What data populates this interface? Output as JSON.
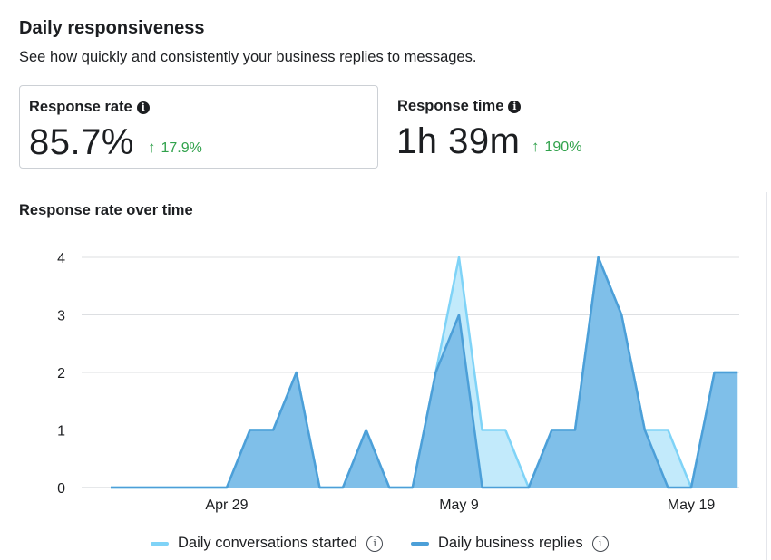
{
  "header": {
    "title": "Daily responsiveness",
    "subtitle": "See how quickly and consistently your business replies to messages."
  },
  "metrics": [
    {
      "label": "Response rate",
      "value": "85.7%",
      "delta": "17.9%",
      "delta_direction": "up",
      "info_icon": "info-icon"
    },
    {
      "label": "Response time",
      "value": "1h 39m",
      "delta": "190%",
      "delta_direction": "up",
      "info_icon": "info-icon"
    }
  ],
  "colors": {
    "positive": "#31a24c",
    "conversations_line": "#7fd3f7",
    "conversations_fill": "#bfe9fb",
    "replies_line": "#4c9fd8",
    "replies_fill": "#7bbde8",
    "grid": "#dddfe2"
  },
  "chart_data": {
    "type": "area",
    "title": "Response rate over time",
    "x_tick_labels": [
      "Apr 29",
      "May 9",
      "May 19"
    ],
    "x": [
      "Apr 24",
      "Apr 25",
      "Apr 26",
      "Apr 27",
      "Apr 28",
      "Apr 29",
      "Apr 30",
      "May 1",
      "May 2",
      "May 3",
      "May 4",
      "May 5",
      "May 6",
      "May 7",
      "May 8",
      "May 9",
      "May 10",
      "May 11",
      "May 12",
      "May 13",
      "May 14",
      "May 15",
      "May 16",
      "May 17",
      "May 18",
      "May 19",
      "May 20",
      "May 21"
    ],
    "ylim": [
      0,
      4
    ],
    "y_ticks": [
      0,
      1,
      2,
      3,
      4
    ],
    "grid": true,
    "legend_position": "bottom",
    "series": [
      {
        "name": "Daily conversations started",
        "values": [
          0,
          0,
          0,
          0,
          0,
          0,
          1,
          1,
          2,
          0,
          0,
          1,
          0,
          0,
          2,
          4,
          1,
          1,
          0,
          1,
          1,
          4,
          3,
          1,
          1,
          0,
          2,
          2
        ]
      },
      {
        "name": "Daily business replies",
        "values": [
          0,
          0,
          0,
          0,
          0,
          0,
          1,
          1,
          2,
          0,
          0,
          1,
          0,
          0,
          2,
          3,
          0,
          0,
          0,
          1,
          1,
          4,
          3,
          1,
          0,
          0,
          2,
          2
        ]
      }
    ]
  }
}
